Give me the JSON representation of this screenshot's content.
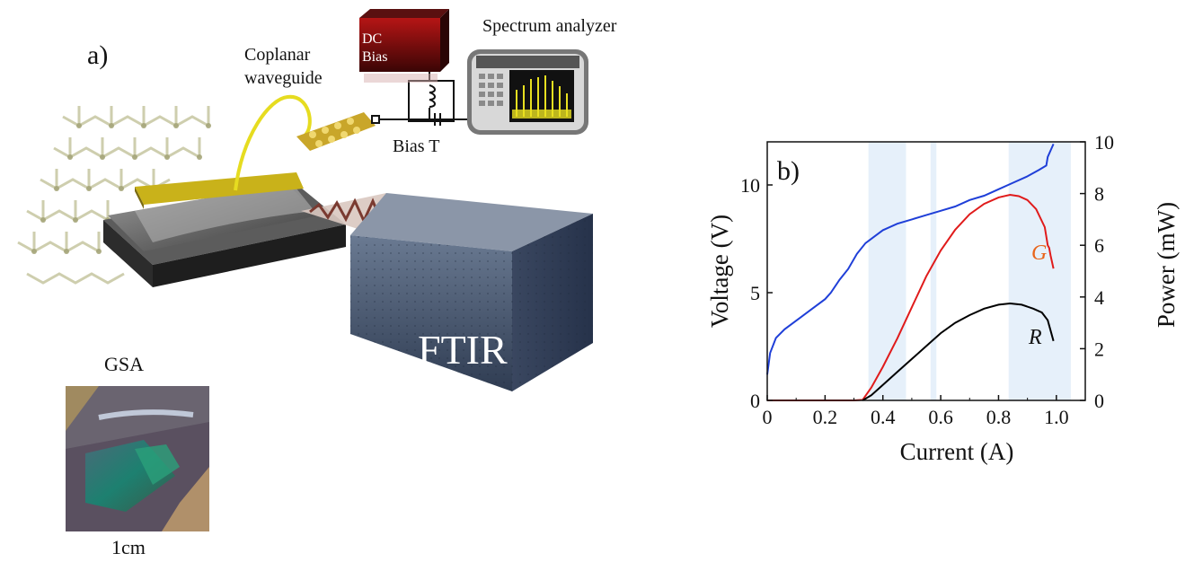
{
  "panel_a": {
    "label": "a)",
    "coplanar_line1": "Coplanar",
    "coplanar_line2": "waveguide",
    "dc_line1": "DC",
    "dc_line2": "Bias",
    "spectrum_analyzer": "Spectrum analyzer",
    "bias_t": "Bias T",
    "ftir": "FTIR",
    "gsa": "GSA",
    "scale": "1cm"
  },
  "colors": {
    "voltage": "#1f3fd8",
    "g_curve": "#e01b1b",
    "r_curve": "#000000",
    "g_label": "#e8641a",
    "shading": "#e6f0fa"
  },
  "chart_data": {
    "type": "line",
    "label": "b)",
    "xlabel": "Current (A)",
    "ylabel_left": "Voltage (V)",
    "ylabel_right": "Power (mW)",
    "xlim": [
      0,
      1.1
    ],
    "ylim_left": [
      0,
      12
    ],
    "ylim_right": [
      0,
      10
    ],
    "xticks": [
      "0",
      "0.2",
      "0.4",
      "0.6",
      "0.8",
      "1.0"
    ],
    "yticks_left": [
      "0",
      "5",
      "10"
    ],
    "yticks_right": [
      "0",
      "2",
      "4",
      "6",
      "8",
      "10"
    ],
    "shaded_regions": [
      [
        0.35,
        0.48
      ],
      [
        0.565,
        0.585
      ],
      [
        0.835,
        1.05
      ]
    ],
    "series": [
      {
        "name": "",
        "axis": "left",
        "x": [
          0,
          0.01,
          0.03,
          0.06,
          0.1,
          0.15,
          0.2,
          0.22,
          0.25,
          0.28,
          0.31,
          0.34,
          0.37,
          0.4,
          0.45,
          0.5,
          0.55,
          0.6,
          0.65,
          0.7,
          0.75,
          0.8,
          0.85,
          0.9,
          0.94,
          0.965,
          0.97,
          0.98,
          0.99
        ],
        "y": [
          1.2,
          2.2,
          2.9,
          3.3,
          3.7,
          4.2,
          4.7,
          5.0,
          5.6,
          6.1,
          6.8,
          7.3,
          7.6,
          7.9,
          8.2,
          8.4,
          8.6,
          8.8,
          9.0,
          9.3,
          9.5,
          9.8,
          10.1,
          10.4,
          10.7,
          10.9,
          11.3,
          11.6,
          11.9
        ]
      },
      {
        "name": "G",
        "axis": "right",
        "x": [
          0,
          0.1,
          0.2,
          0.3,
          0.33,
          0.36,
          0.4,
          0.45,
          0.5,
          0.55,
          0.6,
          0.65,
          0.7,
          0.75,
          0.8,
          0.84,
          0.87,
          0.9,
          0.93,
          0.96,
          0.97,
          0.975,
          0.98,
          0.99
        ],
        "y": [
          0,
          0,
          0,
          0,
          0.02,
          0.5,
          1.3,
          2.4,
          3.6,
          4.8,
          5.8,
          6.6,
          7.2,
          7.6,
          7.85,
          7.95,
          7.9,
          7.75,
          7.4,
          6.7,
          6.0,
          5.9,
          5.6,
          5.1
        ]
      },
      {
        "name": "R",
        "axis": "right",
        "x": [
          0.33,
          0.36,
          0.4,
          0.45,
          0.5,
          0.55,
          0.6,
          0.65,
          0.7,
          0.75,
          0.8,
          0.84,
          0.88,
          0.92,
          0.95,
          0.97,
          0.98,
          0.99
        ],
        "y": [
          0,
          0.2,
          0.6,
          1.1,
          1.6,
          2.1,
          2.6,
          3.0,
          3.3,
          3.55,
          3.7,
          3.75,
          3.7,
          3.55,
          3.4,
          3.1,
          2.7,
          2.3
        ]
      }
    ]
  }
}
